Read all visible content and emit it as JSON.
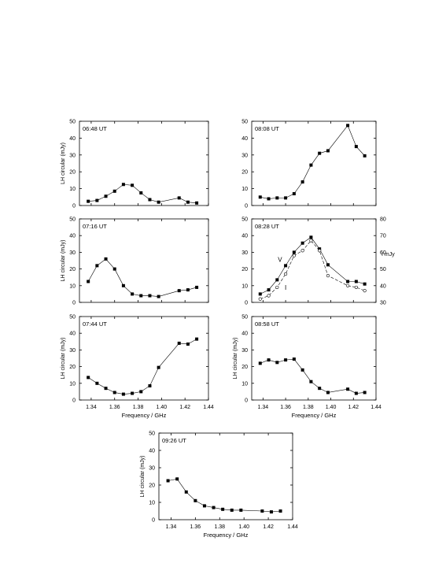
{
  "chart_data": [
    {
      "type": "line",
      "annotation": "06:48 UT",
      "ylabel": "LH circular (mJy)",
      "xlabel": "",
      "xlim": [
        1.33,
        1.44
      ],
      "ylim": [
        0,
        50
      ],
      "y_ticks": [
        "0",
        "10",
        "20",
        "30",
        "40",
        "50"
      ],
      "x_ticks": [],
      "series": [
        {
          "x": [
            1.3375,
            1.345,
            1.3525,
            1.36,
            1.3675,
            1.375,
            1.3825,
            1.39,
            1.3975,
            1.415,
            1.4225,
            1.43
          ],
          "y": [
            2.5,
            3,
            5.5,
            8.5,
            12.5,
            12,
            7.5,
            3.5,
            2,
            4.5,
            2,
            1.5
          ]
        }
      ]
    },
    {
      "type": "line",
      "annotation": "08:08 UT",
      "ylabel": "",
      "xlabel": "",
      "xlim": [
        1.33,
        1.44
      ],
      "ylim": [
        0,
        50
      ],
      "y_ticks": [
        "0",
        "10",
        "20",
        "30",
        "40",
        "50"
      ],
      "x_ticks": [],
      "series": [
        {
          "x": [
            1.3375,
            1.345,
            1.3525,
            1.36,
            1.3675,
            1.375,
            1.3825,
            1.39,
            1.3975,
            1.415,
            1.4225,
            1.43
          ],
          "y": [
            5,
            4,
            4.5,
            4.5,
            7,
            14,
            24,
            31,
            32.5,
            47.5,
            35,
            29.5
          ]
        }
      ]
    },
    {
      "type": "line",
      "annotation": "07:16 UT",
      "ylabel": "LH circular (mJy)",
      "xlabel": "",
      "xlim": [
        1.33,
        1.44
      ],
      "ylim": [
        0,
        50
      ],
      "y_ticks": [
        "0",
        "10",
        "20",
        "30",
        "40",
        "50"
      ],
      "x_ticks": [],
      "series": [
        {
          "x": [
            1.3375,
            1.345,
            1.3525,
            1.36,
            1.3675,
            1.375,
            1.3825,
            1.39,
            1.3975,
            1.415,
            1.4225,
            1.43
          ],
          "y": [
            12.5,
            22,
            26,
            20,
            10,
            5,
            4,
            4,
            3.5,
            7,
            7.5,
            9
          ]
        }
      ]
    },
    {
      "type": "line",
      "annotation": "08:28 UT",
      "ylabel": "",
      "xlabel": "",
      "y2label": "I mJy",
      "xlim": [
        1.33,
        1.44
      ],
      "ylim": [
        0,
        50
      ],
      "y2lim": [
        30,
        80
      ],
      "y_ticks": [
        "0",
        "10",
        "20",
        "30",
        "40",
        "50"
      ],
      "y2_ticks": [
        "30",
        "40",
        "50",
        "60",
        "70",
        "80"
      ],
      "x_ticks": [],
      "series": [
        {
          "name": "V",
          "x": [
            1.3375,
            1.345,
            1.3525,
            1.36,
            1.3675,
            1.375,
            1.3825,
            1.39,
            1.3975,
            1.415,
            1.4225,
            1.43
          ],
          "y": [
            5,
            7.5,
            13.5,
            22,
            30,
            35.5,
            39,
            32,
            22.5,
            12.5,
            12.5,
            11
          ]
        },
        {
          "name": "I",
          "axis": "right",
          "x": [
            1.3375,
            1.345,
            1.3525,
            1.36,
            1.3675,
            1.375,
            1.3825,
            1.39,
            1.3975,
            1.415,
            1.4225,
            1.43
          ],
          "y": [
            32,
            34,
            39,
            47,
            58,
            61,
            67,
            61,
            46,
            40,
            39,
            37
          ]
        }
      ]
    },
    {
      "type": "line",
      "annotation": "07:44 UT",
      "ylabel": "LH circular (mJy)",
      "xlabel": "Frequency / GHz",
      "xlim": [
        1.33,
        1.44
      ],
      "ylim": [
        0,
        50
      ],
      "y_ticks": [
        "0",
        "10",
        "20",
        "30",
        "40",
        "50"
      ],
      "x_ticks": [
        "1.34",
        "1.36",
        "1.38",
        "1.40",
        "1.42",
        "1.44"
      ],
      "series": [
        {
          "x": [
            1.3375,
            1.345,
            1.3525,
            1.36,
            1.3675,
            1.375,
            1.3825,
            1.39,
            1.3975,
            1.415,
            1.4225,
            1.43
          ],
          "y": [
            13.5,
            10,
            7,
            4.5,
            3.5,
            4,
            5,
            8.5,
            19.5,
            34,
            33.5,
            36.5
          ]
        }
      ]
    },
    {
      "type": "line",
      "annotation": "08:58 UT",
      "ylabel": "LH circular (mJy)",
      "xlabel": "Frequency / GHz",
      "xlim": [
        1.33,
        1.44
      ],
      "ylim": [
        0,
        50
      ],
      "y_ticks": [
        "0",
        "10",
        "20",
        "30",
        "40",
        "50"
      ],
      "x_ticks": [
        "1.34",
        "1.36",
        "1.38",
        "1.40",
        "1.42",
        "1.44"
      ],
      "series": [
        {
          "x": [
            1.3375,
            1.345,
            1.3525,
            1.36,
            1.3675,
            1.375,
            1.3825,
            1.39,
            1.3975,
            1.415,
            1.4225,
            1.43
          ],
          "y": [
            22,
            24,
            22.5,
            24,
            24.5,
            18,
            11,
            7,
            4.5,
            6.5,
            4,
            4.5
          ]
        }
      ]
    },
    {
      "type": "line",
      "annotation": "09:26 UT",
      "ylabel": "LH circular (mJy)",
      "xlabel": "Frequency / GHz",
      "xlim": [
        1.33,
        1.44
      ],
      "ylim": [
        0,
        50
      ],
      "y_ticks": [
        "0",
        "10",
        "20",
        "30",
        "40",
        "50"
      ],
      "x_ticks": [
        "1.34",
        "1.36",
        "1.38",
        "1.40",
        "1.42",
        "1.44"
      ],
      "series": [
        {
          "x": [
            1.3375,
            1.345,
            1.3525,
            1.36,
            1.3675,
            1.375,
            1.3825,
            1.39,
            1.3975,
            1.415,
            1.4225,
            1.43
          ],
          "y": [
            22.5,
            23.5,
            16,
            11,
            8,
            7,
            6,
            5.5,
            5.5,
            5,
            4.5,
            5
          ]
        }
      ]
    }
  ]
}
